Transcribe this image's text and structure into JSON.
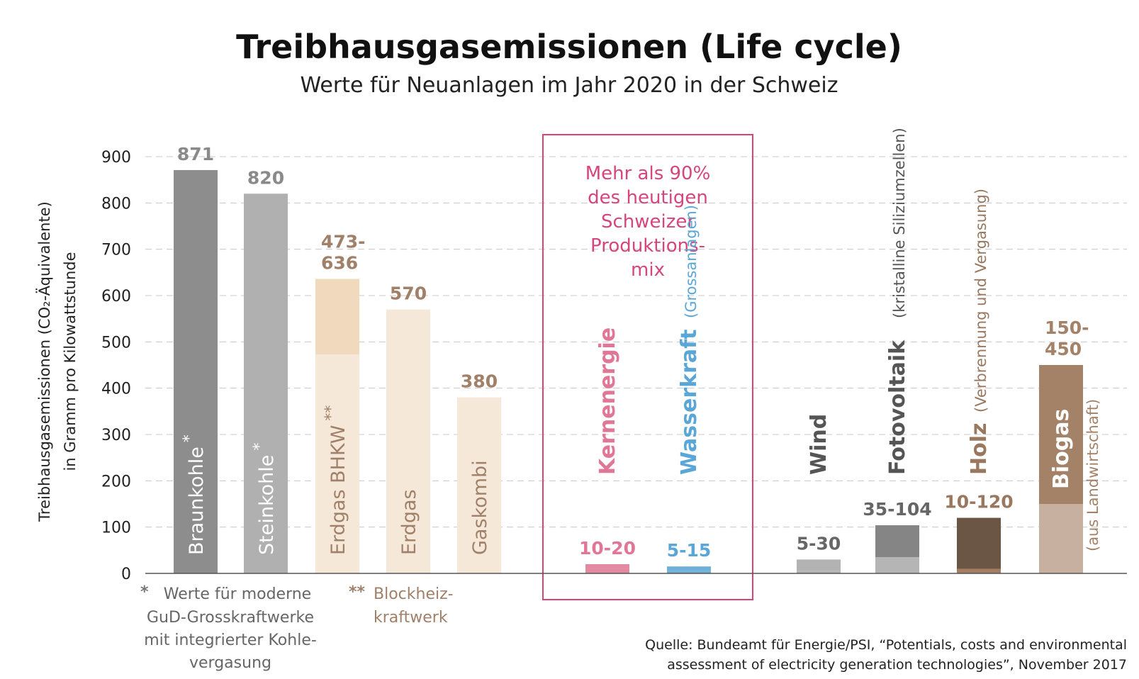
{
  "title": "Treibhausgasemissionen (Life cycle)",
  "subtitle": "Werte für Neuanlagen im Jahr 2020 in der Schweiz",
  "y_axis_label_line1": "Treibhausgasemissionen (CO₂-Äquivalente)",
  "y_axis_label_line2": "in Gramm pro Kilowattstunde",
  "mix_box_lines": [
    "Mehr als 90%",
    "des heutigen",
    "Schweizer",
    "Produktions-",
    "mix"
  ],
  "footnote1": {
    "marker": "*",
    "lines": [
      "Werte für moderne",
      "GuD-Grosskraftwerke",
      "mit integrierter Kohle-",
      "vergasung"
    ]
  },
  "footnote2": {
    "marker": "**",
    "lines": [
      "Blockheiz-",
      "kraftwerk"
    ]
  },
  "source_lines": [
    "Quelle: Bundeamt für Energie/PSI, “Potentials, costs and environmental",
    "assessment of electricity generation technologies”, November 2017"
  ],
  "colors": {
    "braunkohle": "#8d8d8d",
    "steinkohle": "#b0b0b0",
    "erdgas_light": "#f5e8d8",
    "erdgas_mid": "#f1d9bd",
    "erdgas_text": "#a08068",
    "kernenergie": "#e28aa1",
    "wasserkraft": "#6fb0d8",
    "wind": "#b3b3b3",
    "foto_low": "#b5b5b5",
    "foto_high": "#858585",
    "holz_low": "#a37d62",
    "holz_high": "#6b5646",
    "biogas_low": "#c7b09f",
    "biogas_high": "#a38268",
    "mix_box": "#d6457c",
    "grid": "#c8c8c8"
  },
  "chart_data": {
    "type": "bar",
    "title": "Treibhausgasemissionen (Life cycle)",
    "ylim": [
      0,
      900
    ],
    "yticks": [
      0,
      100,
      200,
      300,
      400,
      500,
      600,
      700,
      800,
      900
    ],
    "grid": "horizontal-dashed",
    "categories": [
      "Braunkohle",
      "Steinkohle",
      "Erdgas BHKW",
      "Erdgas",
      "Gaskombi",
      "Kernenergie",
      "Wasserkraft",
      "Wind",
      "Fotovoltaik",
      "Holz",
      "Biogas"
    ],
    "bars": [
      {
        "name": "Braunkohle",
        "marker": "*",
        "low": 871,
        "high": 871,
        "label": "871"
      },
      {
        "name": "Steinkohle",
        "marker": "*",
        "low": 820,
        "high": 820,
        "label": "820"
      },
      {
        "name": "Erdgas BHKW",
        "marker": "**",
        "low": 473,
        "high": 636,
        "label_lines": [
          "473-",
          "636"
        ]
      },
      {
        "name": "Erdgas",
        "low": 570,
        "high": 570,
        "label": "570"
      },
      {
        "name": "Gaskombi",
        "low": 380,
        "high": 380,
        "label": "380"
      },
      {
        "name": "Kernenergie",
        "low": 10,
        "high": 20,
        "label": "10-20"
      },
      {
        "name": "Wasserkraft",
        "sublabel": "(Grossanlagen)",
        "low": 5,
        "high": 15,
        "label": "5-15"
      },
      {
        "name": "Wind",
        "low": 5,
        "high": 30,
        "label": "5-30"
      },
      {
        "name": "Fotovoltaik",
        "sublabel": "(kristalline Siliziumzellen)",
        "low": 35,
        "high": 104,
        "label": "35-104"
      },
      {
        "name": "Holz",
        "sublabel": "(Verbrennung und Vergasung)",
        "low": 10,
        "high": 120,
        "label": "10-120"
      },
      {
        "name": "Biogas",
        "sublabel": "(aus Landwirtschaft)",
        "low": 150,
        "high": 450,
        "label_lines": [
          "150-",
          "450"
        ]
      }
    ]
  }
}
